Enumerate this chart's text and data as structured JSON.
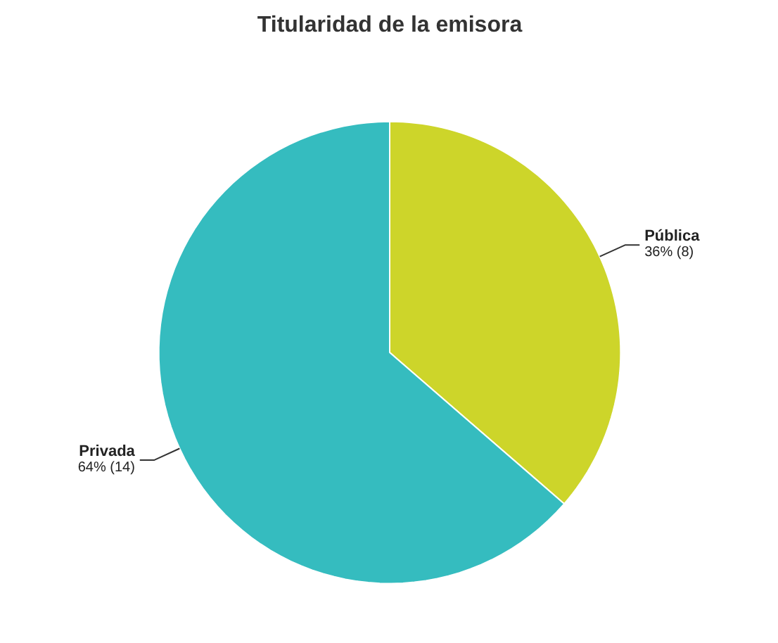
{
  "chart_data": {
    "type": "pie",
    "title": "Titularidad de la emisora",
    "categories": [
      "Pública",
      "Privada"
    ],
    "values": [
      8,
      14
    ],
    "value_labels": [
      "36% (8)",
      "64% (14)"
    ],
    "colors": [
      "#cdd52a",
      "#35bcbf"
    ]
  }
}
